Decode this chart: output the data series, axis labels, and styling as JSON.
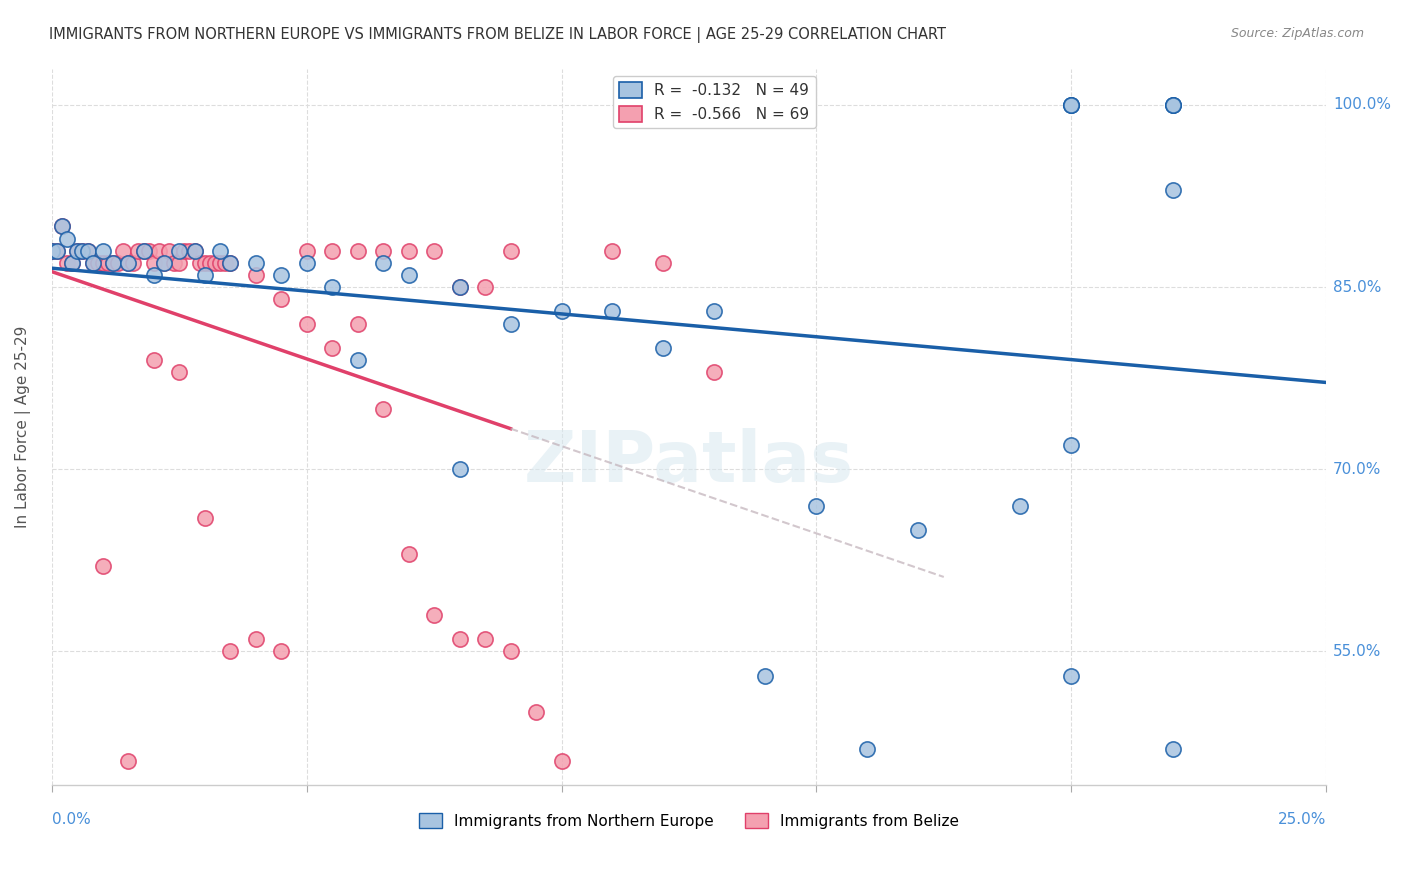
{
  "title": "IMMIGRANTS FROM NORTHERN EUROPE VS IMMIGRANTS FROM BELIZE IN LABOR FORCE | AGE 25-29 CORRELATION CHART",
  "source": "Source: ZipAtlas.com",
  "ylabel": "In Labor Force | Age 25-29",
  "ylabel_ticks": [
    "100.0%",
    "85.0%",
    "70.0%",
    "55.0%"
  ],
  "ylabel_tick_vals": [
    1.0,
    0.85,
    0.7,
    0.55
  ],
  "xmin": 0.0,
  "xmax": 0.25,
  "ymin": 0.44,
  "ymax": 1.03,
  "blue_R": -0.132,
  "blue_N": 49,
  "pink_R": -0.566,
  "pink_N": 69,
  "blue_color": "#a8c4e0",
  "pink_color": "#f4a0b0",
  "blue_line_color": "#1a5fa8",
  "pink_line_color": "#e0406a",
  "watermark": "ZIPatlas",
  "legend_label_blue": "Immigrants from Northern Europe",
  "legend_label_pink": "Immigrants from Belize",
  "right_axis_color": "#4a90d9",
  "blue_scatter_x": [
    0.0,
    0.001,
    0.002,
    0.003,
    0.004,
    0.005,
    0.006,
    0.007,
    0.008,
    0.01,
    0.012,
    0.015,
    0.018,
    0.02,
    0.022,
    0.025,
    0.028,
    0.03,
    0.033,
    0.035,
    0.04,
    0.045,
    0.05,
    0.055,
    0.06,
    0.065,
    0.07,
    0.08,
    0.09,
    0.1,
    0.11,
    0.12,
    0.13,
    0.15,
    0.17,
    0.19,
    0.2,
    0.22,
    0.2,
    0.2,
    0.2,
    0.2,
    0.22,
    0.22,
    0.22,
    0.22,
    0.14,
    0.16,
    0.08
  ],
  "blue_scatter_y": [
    0.88,
    0.88,
    0.9,
    0.89,
    0.87,
    0.88,
    0.88,
    0.88,
    0.87,
    0.88,
    0.87,
    0.87,
    0.88,
    0.86,
    0.87,
    0.88,
    0.88,
    0.86,
    0.88,
    0.87,
    0.87,
    0.86,
    0.87,
    0.85,
    0.79,
    0.87,
    0.86,
    0.85,
    0.82,
    0.83,
    0.83,
    0.8,
    0.83,
    0.67,
    0.65,
    0.67,
    0.53,
    0.47,
    0.72,
    1.0,
    1.0,
    1.0,
    1.0,
    1.0,
    1.0,
    0.93,
    0.53,
    0.47,
    0.7
  ],
  "pink_scatter_x": [
    0.0,
    0.001,
    0.002,
    0.003,
    0.004,
    0.005,
    0.006,
    0.007,
    0.008,
    0.009,
    0.01,
    0.011,
    0.012,
    0.013,
    0.014,
    0.015,
    0.016,
    0.017,
    0.018,
    0.019,
    0.02,
    0.021,
    0.022,
    0.023,
    0.024,
    0.025,
    0.026,
    0.027,
    0.028,
    0.029,
    0.03,
    0.031,
    0.032,
    0.033,
    0.034,
    0.035,
    0.04,
    0.045,
    0.05,
    0.055,
    0.06,
    0.065,
    0.07,
    0.075,
    0.08,
    0.085,
    0.09,
    0.095,
    0.1,
    0.11,
    0.12,
    0.13,
    0.02,
    0.025,
    0.03,
    0.035,
    0.04,
    0.045,
    0.05,
    0.055,
    0.06,
    0.065,
    0.07,
    0.075,
    0.08,
    0.085,
    0.09,
    0.01,
    0.015
  ],
  "pink_scatter_y": [
    0.88,
    0.88,
    0.9,
    0.87,
    0.87,
    0.88,
    0.88,
    0.88,
    0.87,
    0.87,
    0.87,
    0.87,
    0.87,
    0.87,
    0.88,
    0.87,
    0.87,
    0.88,
    0.88,
    0.88,
    0.87,
    0.88,
    0.87,
    0.88,
    0.87,
    0.87,
    0.88,
    0.88,
    0.88,
    0.87,
    0.87,
    0.87,
    0.87,
    0.87,
    0.87,
    0.87,
    0.86,
    0.84,
    0.82,
    0.8,
    0.82,
    0.75,
    0.63,
    0.58,
    0.56,
    0.56,
    0.55,
    0.5,
    0.46,
    0.88,
    0.87,
    0.78,
    0.79,
    0.78,
    0.66,
    0.55,
    0.56,
    0.55,
    0.88,
    0.88,
    0.88,
    0.88,
    0.88,
    0.88,
    0.85,
    0.85,
    0.88,
    0.62,
    0.46
  ]
}
